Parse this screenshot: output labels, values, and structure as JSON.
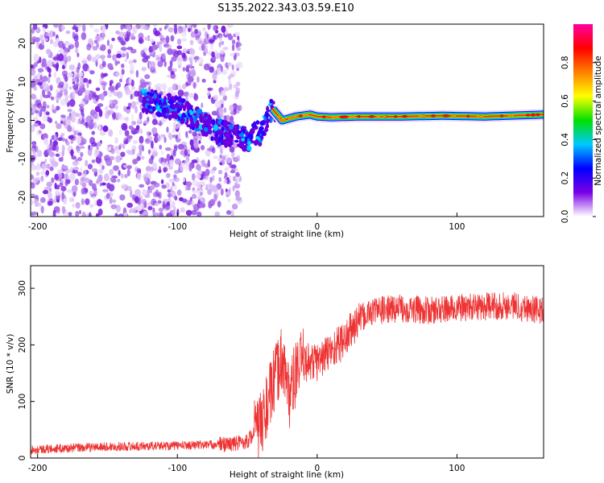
{
  "title": "S135.2022.343.03.59.E10",
  "chart_data": [
    {
      "type": "heatmap",
      "title": "S135.2022.343.03.59.E10",
      "xlabel": "Height of straight line (km)",
      "ylabel": "Frequency (Hz)",
      "xlim": [
        -205,
        162
      ],
      "ylim": [
        -25,
        25
      ],
      "x_ticks": [
        "-200",
        "-100",
        "0",
        "100"
      ],
      "y_ticks": [
        "20",
        "10",
        "0",
        "-10",
        "-20"
      ],
      "grid": false,
      "description_of_field": "scattered low-amplitude noise for x < -55 km; ridge descending from about 5 Hz at -120 km to -5 Hz near -50 km, then a narrow high-amplitude line near 1 Hz from -30 km to 162 km",
      "ridge_x": [
        -120,
        -100,
        -90,
        -80,
        -70,
        -60,
        -50,
        -40,
        -32,
        -25,
        -15,
        -5,
        0,
        10,
        30,
        60,
        90,
        120,
        162
      ],
      "ridge_y": [
        5,
        3,
        1,
        -1,
        -3,
        -4,
        -5,
        -3,
        3,
        0,
        1,
        1.5,
        1,
        0.8,
        1,
        1,
        1.2,
        1,
        1.5
      ],
      "colorbar": {
        "label": "Normalized spectral amplitude",
        "range": [
          0,
          1
        ],
        "ticks": [
          "0.0",
          "0.2",
          "0.4",
          "0.6",
          "0.8"
        ],
        "colors": [
          "#ffffff",
          "#7a00e6",
          "#0000ff",
          "#00c8ff",
          "#00e000",
          "#ffff00",
          "#ff8000",
          "#ff0000",
          "#ff00a0"
        ]
      }
    },
    {
      "type": "line",
      "xlabel": "Height of straight line (km)",
      "ylabel": "SNR (10 * v/v)",
      "xlim": [
        -205,
        162
      ],
      "ylim": [
        0,
        340
      ],
      "x_ticks": [
        "-200",
        "-100",
        "0",
        "100"
      ],
      "y_ticks": [
        "300",
        "200",
        "100",
        "0"
      ],
      "grid": false,
      "color": "#ee3333",
      "x": [
        -205,
        -150,
        -100,
        -60,
        -50,
        -40,
        -35,
        -30,
        -25,
        -20,
        -15,
        -10,
        0,
        10,
        20,
        30,
        40,
        60,
        80,
        100,
        120,
        140,
        162
      ],
      "y": [
        15,
        20,
        22,
        25,
        30,
        60,
        100,
        140,
        180,
        110,
        150,
        170,
        170,
        190,
        210,
        245,
        260,
        265,
        260,
        265,
        268,
        270,
        260
      ]
    }
  ]
}
